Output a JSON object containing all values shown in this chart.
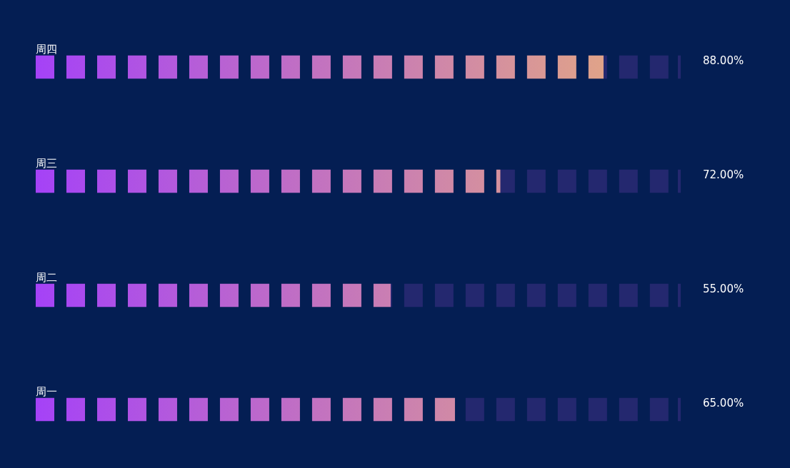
{
  "chart_data": {
    "type": "bar",
    "orientation": "horizontal",
    "stacked": true,
    "categories": [
      "周四",
      "周三",
      "周二",
      "周一"
    ],
    "xlim": [
      0,
      100
    ],
    "series": [
      {
        "color": "#a542f7",
        "values": [
          88,
          72,
          55,
          65
        ],
        "value_labels": [
          "88.00%",
          "72.00%",
          "55.00%",
          "65.00%"
        ]
      },
      {
        "color": "#24286f",
        "values": [
          12,
          28,
          45,
          35
        ]
      }
    ],
    "legend": false,
    "grid": false,
    "tick_labels": false
  }
}
